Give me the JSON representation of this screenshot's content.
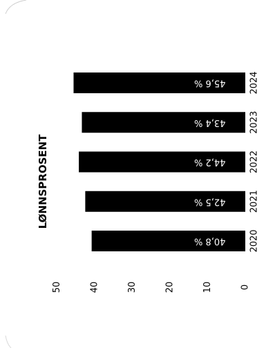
{
  "chart_data": {
    "type": "bar",
    "orientation": "horizontal",
    "title": "LØNNSPROSENT",
    "categories": [
      "2020",
      "2021",
      "2022",
      "2023",
      "2024"
    ],
    "values": [
      40.8,
      42.5,
      44.2,
      43.4,
      45.6
    ],
    "data_labels": [
      "40,8 %",
      "42,5 %",
      "44,2 %",
      "43,4 %",
      "45,6 %"
    ],
    "axis_ticks": [
      "0",
      "10",
      "20",
      "30",
      "40",
      "50"
    ],
    "xlim": [
      0,
      50
    ],
    "grid": false,
    "legend": "none",
    "bar_color": "#000000",
    "label_color": "#ffffff",
    "rotation": "image rotated 180 degrees"
  }
}
